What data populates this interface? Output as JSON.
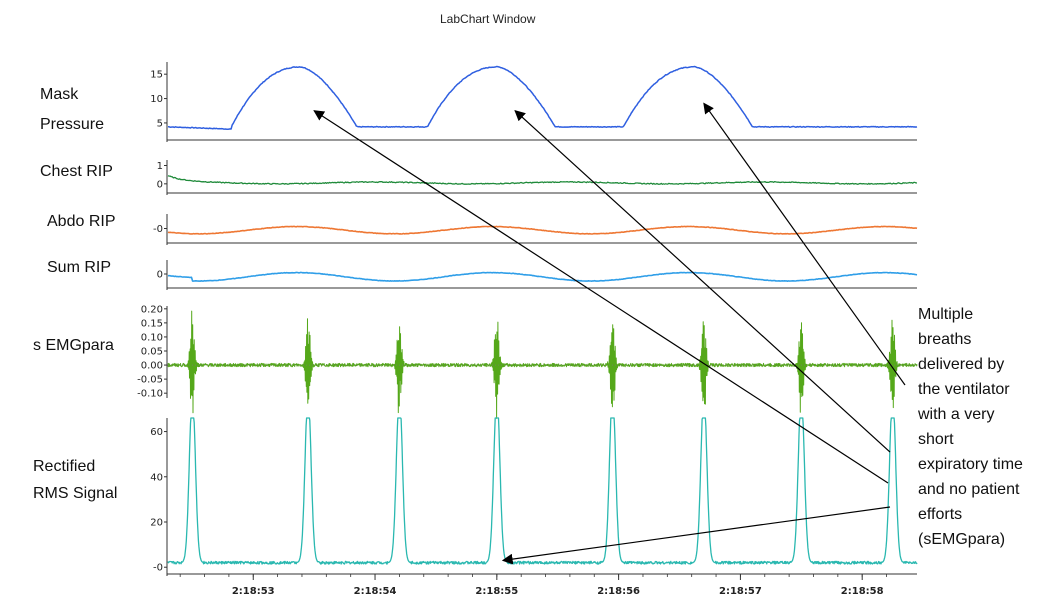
{
  "window_title": "LabChart Window",
  "annotation_lines": [
    "Multiple",
    "breaths",
    "delivered by",
    "the ventilator",
    "with a very",
    "short",
    "expiratory time",
    "and no patient",
    "efforts",
    "(sEMGpara)"
  ],
  "colors": {
    "mask_pressure": "#2f5fe0",
    "chest_rip": "#1f8a3a",
    "abdo_rip": "#ee7733",
    "sum_rip": "#2f9ee8",
    "semg": "#55a81a",
    "rms": "#2ab8b0",
    "arrow": "#000000"
  },
  "chart_data": {
    "type": "line",
    "title": "LabChart Window",
    "x_tick_labels": [
      "2:18:53",
      "2:18:54",
      "2:18:55",
      "2:18:56",
      "2:18:57",
      "2:18:58"
    ],
    "x_tick_seconds": [
      53,
      54,
      55,
      56,
      57,
      58
    ],
    "x_range_seconds": [
      52.3,
      58.45
    ],
    "channels": [
      {
        "key": "mask",
        "name": "Mask Pressure",
        "label_lines": [
          "Mask",
          "Pressure"
        ],
        "ticks": [
          "15",
          "10",
          "5"
        ],
        "tick_values": [
          15,
          10,
          5
        ],
        "ylim": [
          1.5,
          17.5
        ],
        "baseline": 4.2,
        "peak": 16.5,
        "breath_start_seconds": [
          52.82,
          54.43,
          56.04
        ],
        "breath_end_seconds": [
          53.85,
          55.48,
          57.1
        ]
      },
      {
        "key": "chest",
        "name": "Chest RIP",
        "label_lines": [
          "Chest RIP"
        ],
        "ticks": [
          "1",
          "0"
        ],
        "tick_values": [
          1,
          0
        ],
        "ylim": [
          -0.5,
          1.3
        ]
      },
      {
        "key": "abdo",
        "name": "Abdo RIP",
        "label_lines": [
          "Abdo RIP"
        ],
        "ticks": [
          "-0"
        ],
        "tick_values": [
          0
        ],
        "ylim": [
          -0.6,
          0.6
        ]
      },
      {
        "key": "sum",
        "name": "Sum RIP",
        "label_lines": [
          "Sum RIP"
        ],
        "ticks": [
          "0"
        ],
        "tick_values": [
          0
        ],
        "ylim": [
          -0.6,
          0.6
        ]
      },
      {
        "key": "semg",
        "name": "sEMGpara",
        "label_lines": [
          "s EMGpara"
        ],
        "ticks": [
          "0.20",
          "0.15",
          "0.10",
          "0.05",
          "0.00",
          "-0.05",
          "-0.10"
        ],
        "tick_values": [
          0.2,
          0.15,
          0.1,
          0.05,
          0.0,
          -0.05,
          -0.1
        ],
        "ylim": [
          -0.11,
          0.21
        ],
        "burst_seconds": [
          52.5,
          53.45,
          54.2,
          55.0,
          55.95,
          56.7,
          57.5,
          58.25
        ]
      },
      {
        "key": "rms",
        "name": "Rectified RMS Signal",
        "label_lines": [
          "Rectified",
          "RMS Signal"
        ],
        "ticks": [
          "60",
          "40",
          "20",
          "-0"
        ],
        "tick_values": [
          60,
          40,
          20,
          0
        ],
        "ylim": [
          -3,
          66
        ],
        "spike_seconds": [
          52.5,
          53.45,
          54.2,
          55.0,
          55.95,
          56.7,
          57.5,
          58.25
        ]
      }
    ]
  }
}
